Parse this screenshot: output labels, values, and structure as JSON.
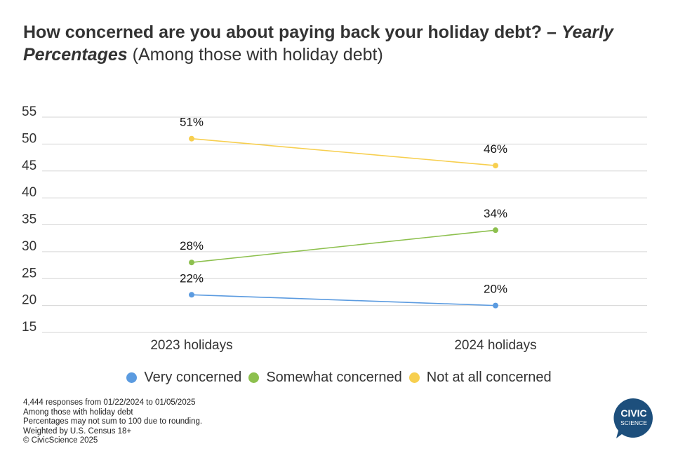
{
  "title": {
    "bold": "How concerned are you about paying back your holiday debt? – ",
    "italic": "Yearly Percentages",
    "subtitle": " (Among those with holiday debt)"
  },
  "chart_data": {
    "type": "line",
    "categories": [
      "2023 holidays",
      "2024 holidays"
    ],
    "ylim": [
      15,
      55
    ],
    "yticks": [
      15,
      20,
      25,
      30,
      35,
      40,
      45,
      50,
      55
    ],
    "grid": true,
    "legend_position": "bottom",
    "series": [
      {
        "name": "Very concerned",
        "values": [
          22,
          20
        ],
        "labels": [
          "22%",
          "20%"
        ],
        "color": "#5b9be0"
      },
      {
        "name": "Somewhat concerned",
        "values": [
          28,
          34
        ],
        "labels": [
          "28%",
          "34%"
        ],
        "color": "#8dc04e"
      },
      {
        "name": "Not at all concerned",
        "values": [
          51,
          46
        ],
        "labels": [
          "51%",
          "46%"
        ],
        "color": "#f7cf4f"
      }
    ]
  },
  "footnotes": [
    "4,444 responses from 01/22/2024 to 01/05/2025",
    "Among those with holiday debt",
    "Percentages may not sum to 100 due to rounding.",
    "Weighted by U.S. Census 18+",
    "© CivicScience 2025"
  ],
  "logo": {
    "line1": "CIVIC",
    "line2": "SCIENCE",
    "color": "#1d4f7c"
  }
}
